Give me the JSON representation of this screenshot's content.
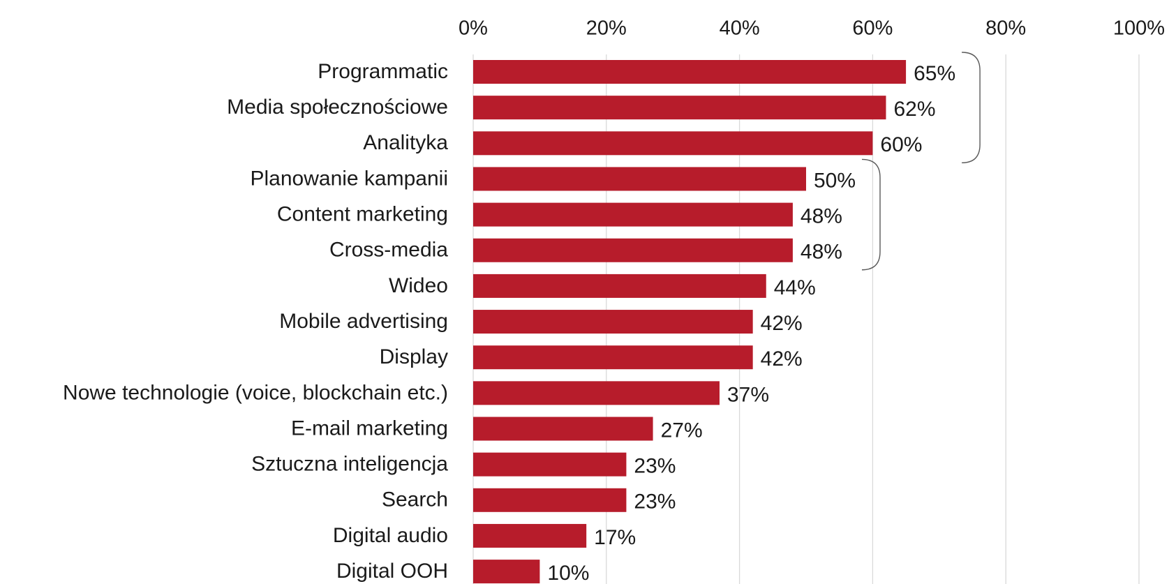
{
  "chart_data": {
    "type": "bar",
    "orientation": "horizontal",
    "categories": [
      "Programmatic",
      "Media społecznościowe",
      "Analityka",
      "Planowanie kampanii",
      "Content marketing",
      "Cross-media",
      "Wideo",
      "Mobile advertising",
      "Display",
      "Nowe technologie (voice, blockchain etc.)",
      "E-mail marketing",
      "Sztuczna inteligencja",
      "Search",
      "Digital audio",
      "Digital OOH"
    ],
    "values": [
      65,
      62,
      60,
      50,
      48,
      48,
      44,
      42,
      42,
      37,
      27,
      23,
      23,
      17,
      10
    ],
    "value_labels": [
      "65%",
      "62%",
      "60%",
      "50%",
      "48%",
      "48%",
      "44%",
      "42%",
      "42%",
      "37%",
      "27%",
      "23%",
      "23%",
      "17%",
      "10%"
    ],
    "x_ticks": [
      0,
      20,
      40,
      60,
      80,
      100
    ],
    "x_tick_labels": [
      "0%",
      "20%",
      "40%",
      "60%",
      "80%",
      "100%"
    ],
    "xlim": [
      0,
      100
    ],
    "x_axis_position": "top",
    "grid": true,
    "legend": "none",
    "bar_color": "#b71c2b",
    "gridline_color": "#d9d9d9",
    "bracket_color": "#595959",
    "brackets": [
      {
        "from_category": 0,
        "to_category": 2
      },
      {
        "from_category": 3,
        "to_category": 5
      }
    ]
  }
}
